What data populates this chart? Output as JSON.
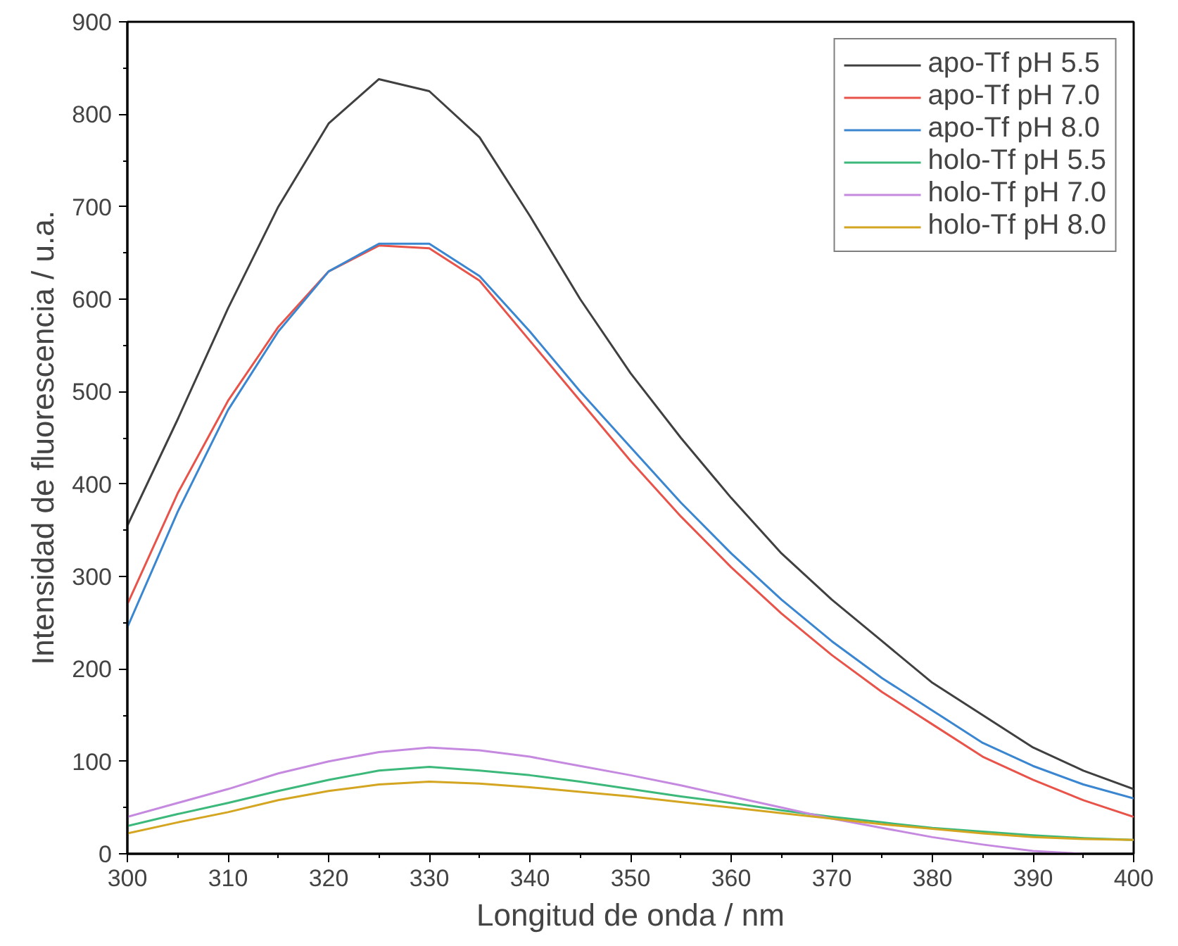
{
  "chart_data": {
    "type": "line",
    "xlabel": "Longitud de onda / nm",
    "ylabel": "Intensidad de fluorescencia / u.a.",
    "x": [
      300,
      305,
      310,
      315,
      320,
      325,
      330,
      335,
      340,
      345,
      350,
      355,
      360,
      365,
      370,
      375,
      380,
      385,
      390,
      395,
      400
    ],
    "xlim": [
      300,
      400
    ],
    "xticks": [
      300,
      310,
      320,
      330,
      340,
      350,
      360,
      370,
      380,
      390,
      400
    ],
    "ylim": [
      0,
      900
    ],
    "yticks": [
      0,
      100,
      200,
      300,
      400,
      500,
      600,
      700,
      800,
      900
    ],
    "grid": false,
    "legend": "top right",
    "marker": "none",
    "line_style": "solid",
    "series": [
      {
        "name": "apo-Tf pH 5.5",
        "color": "#404040",
        "values": [
          355,
          470,
          590,
          700,
          790,
          838,
          825,
          775,
          690,
          600,
          520,
          450,
          385,
          325,
          275,
          230,
          185,
          150,
          115,
          90,
          70
        ]
      },
      {
        "name": "apo-Tf pH 7.0",
        "color": "#e8534a",
        "values": [
          270,
          390,
          490,
          570,
          630,
          658,
          655,
          620,
          555,
          490,
          425,
          365,
          310,
          260,
          215,
          175,
          140,
          105,
          80,
          58,
          40
        ]
      },
      {
        "name": "apo-Tf pH 8.0",
        "color": "#3a86d0",
        "values": [
          245,
          370,
          480,
          565,
          630,
          660,
          660,
          625,
          565,
          500,
          440,
          380,
          325,
          275,
          230,
          190,
          155,
          120,
          95,
          75,
          60
        ]
      },
      {
        "name": "holo-Tf pH 5.5",
        "color": "#3cb97a",
        "values": [
          30,
          43,
          55,
          68,
          80,
          90,
          94,
          90,
          85,
          78,
          70,
          62,
          55,
          47,
          40,
          34,
          28,
          24,
          20,
          17,
          15
        ]
      },
      {
        "name": "holo-Tf pH 7.0",
        "color": "#c58ae0",
        "values": [
          40,
          55,
          70,
          87,
          100,
          110,
          115,
          112,
          105,
          95,
          85,
          74,
          62,
          50,
          38,
          28,
          18,
          10,
          3,
          0,
          null
        ]
      },
      {
        "name": "holo-Tf pH 8.0",
        "color": "#d4a520",
        "values": [
          22,
          34,
          45,
          58,
          68,
          75,
          78,
          76,
          72,
          67,
          62,
          56,
          50,
          44,
          38,
          32,
          27,
          22,
          18,
          16,
          15
        ]
      }
    ]
  }
}
